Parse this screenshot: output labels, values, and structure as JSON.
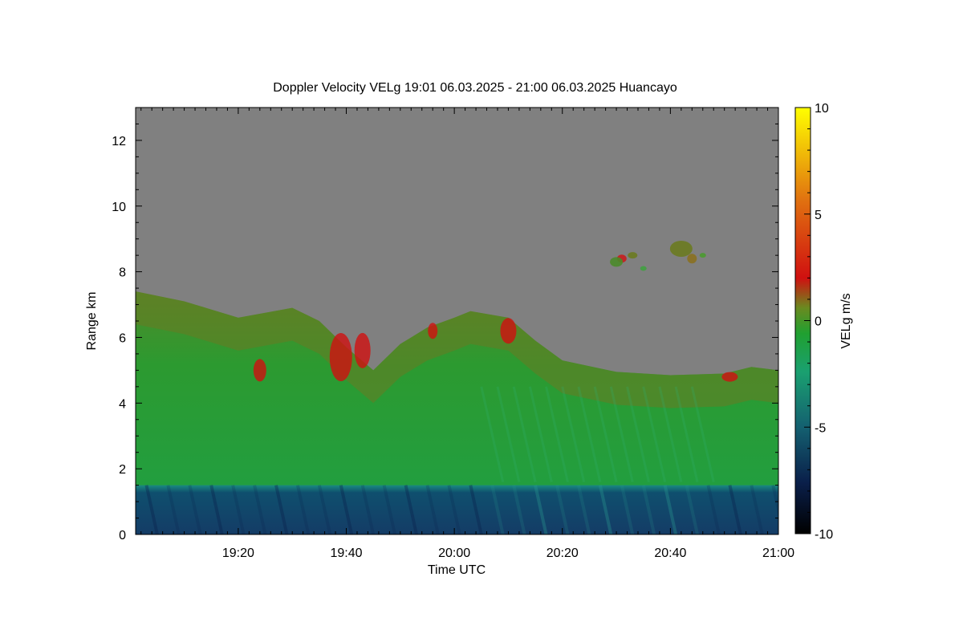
{
  "chart_data": {
    "type": "heatmap",
    "title": "Doppler Velocity VELg   19:01 06.03.2025 - 21:00 06.03.2025 Huancayo",
    "xlabel": "Time UTC",
    "ylabel": "Range km",
    "colorbar_label": "VELg m/s",
    "xlim": [
      "19:01",
      "21:00"
    ],
    "x_ticks": [
      {
        "label": "19:20",
        "minutes": 1160
      },
      {
        "label": "19:40",
        "minutes": 1180
      },
      {
        "label": "20:00",
        "minutes": 1200
      },
      {
        "label": "20:20",
        "minutes": 1220
      },
      {
        "label": "20:40",
        "minutes": 1240
      },
      {
        "label": "21:00",
        "minutes": 1260
      }
    ],
    "ylim": [
      0,
      13
    ],
    "y_ticks": [
      0,
      2,
      4,
      6,
      8,
      10,
      12
    ],
    "clim": [
      -10,
      10
    ],
    "colorbar_ticks": [
      {
        "label": "10",
        "value": 10
      },
      {
        "label": "5",
        "value": 5
      },
      {
        "label": "0",
        "value": 0
      },
      {
        "label": "-5",
        "value": -5
      },
      {
        "label": "-10",
        "value": -10
      }
    ],
    "colormap": [
      "#000000",
      "#0a1f4a",
      "#146070",
      "#1aa070",
      "#20a030",
      "#6a8a20",
      "#d01010",
      "#e07010",
      "#ffff00"
    ],
    "no_data_color": "#808080",
    "layers": [
      {
        "description": "near-surface layer",
        "range_km": [
          0,
          1.5
        ],
        "velocity_ms": -6
      },
      {
        "description": "mid layer",
        "range_km": [
          1.5,
          4.5
        ],
        "velocity_ms": -2
      },
      {
        "description": "cloud top region",
        "range_km": [
          4.5,
          7.5
        ],
        "velocity_ms": -1
      },
      {
        "description": "upper echoes near 20:30-20:45",
        "range_km": [
          8,
          9
        ],
        "velocity_ms": 0
      }
    ],
    "echo_top_km": [
      {
        "time_min": 1141,
        "top": 7.4
      },
      {
        "time_min": 1150,
        "top": 7.1
      },
      {
        "time_min": 1160,
        "top": 6.6
      },
      {
        "time_min": 1170,
        "top": 6.9
      },
      {
        "time_min": 1175,
        "top": 6.5
      },
      {
        "time_min": 1180,
        "top": 5.7
      },
      {
        "time_min": 1185,
        "top": 5.0
      },
      {
        "time_min": 1190,
        "top": 5.8
      },
      {
        "time_min": 1195,
        "top": 6.3
      },
      {
        "time_min": 1200,
        "top": 6.6
      },
      {
        "time_min": 1203,
        "top": 6.8
      },
      {
        "time_min": 1210,
        "top": 6.6
      },
      {
        "time_min": 1215,
        "top": 5.9
      },
      {
        "time_min": 1220,
        "top": 5.3
      },
      {
        "time_min": 1230,
        "top": 4.95
      },
      {
        "time_min": 1240,
        "top": 4.85
      },
      {
        "time_min": 1250,
        "top": 4.9
      },
      {
        "time_min": 1255,
        "top": 5.1
      },
      {
        "time_min": 1260,
        "top": 5.0
      }
    ]
  }
}
